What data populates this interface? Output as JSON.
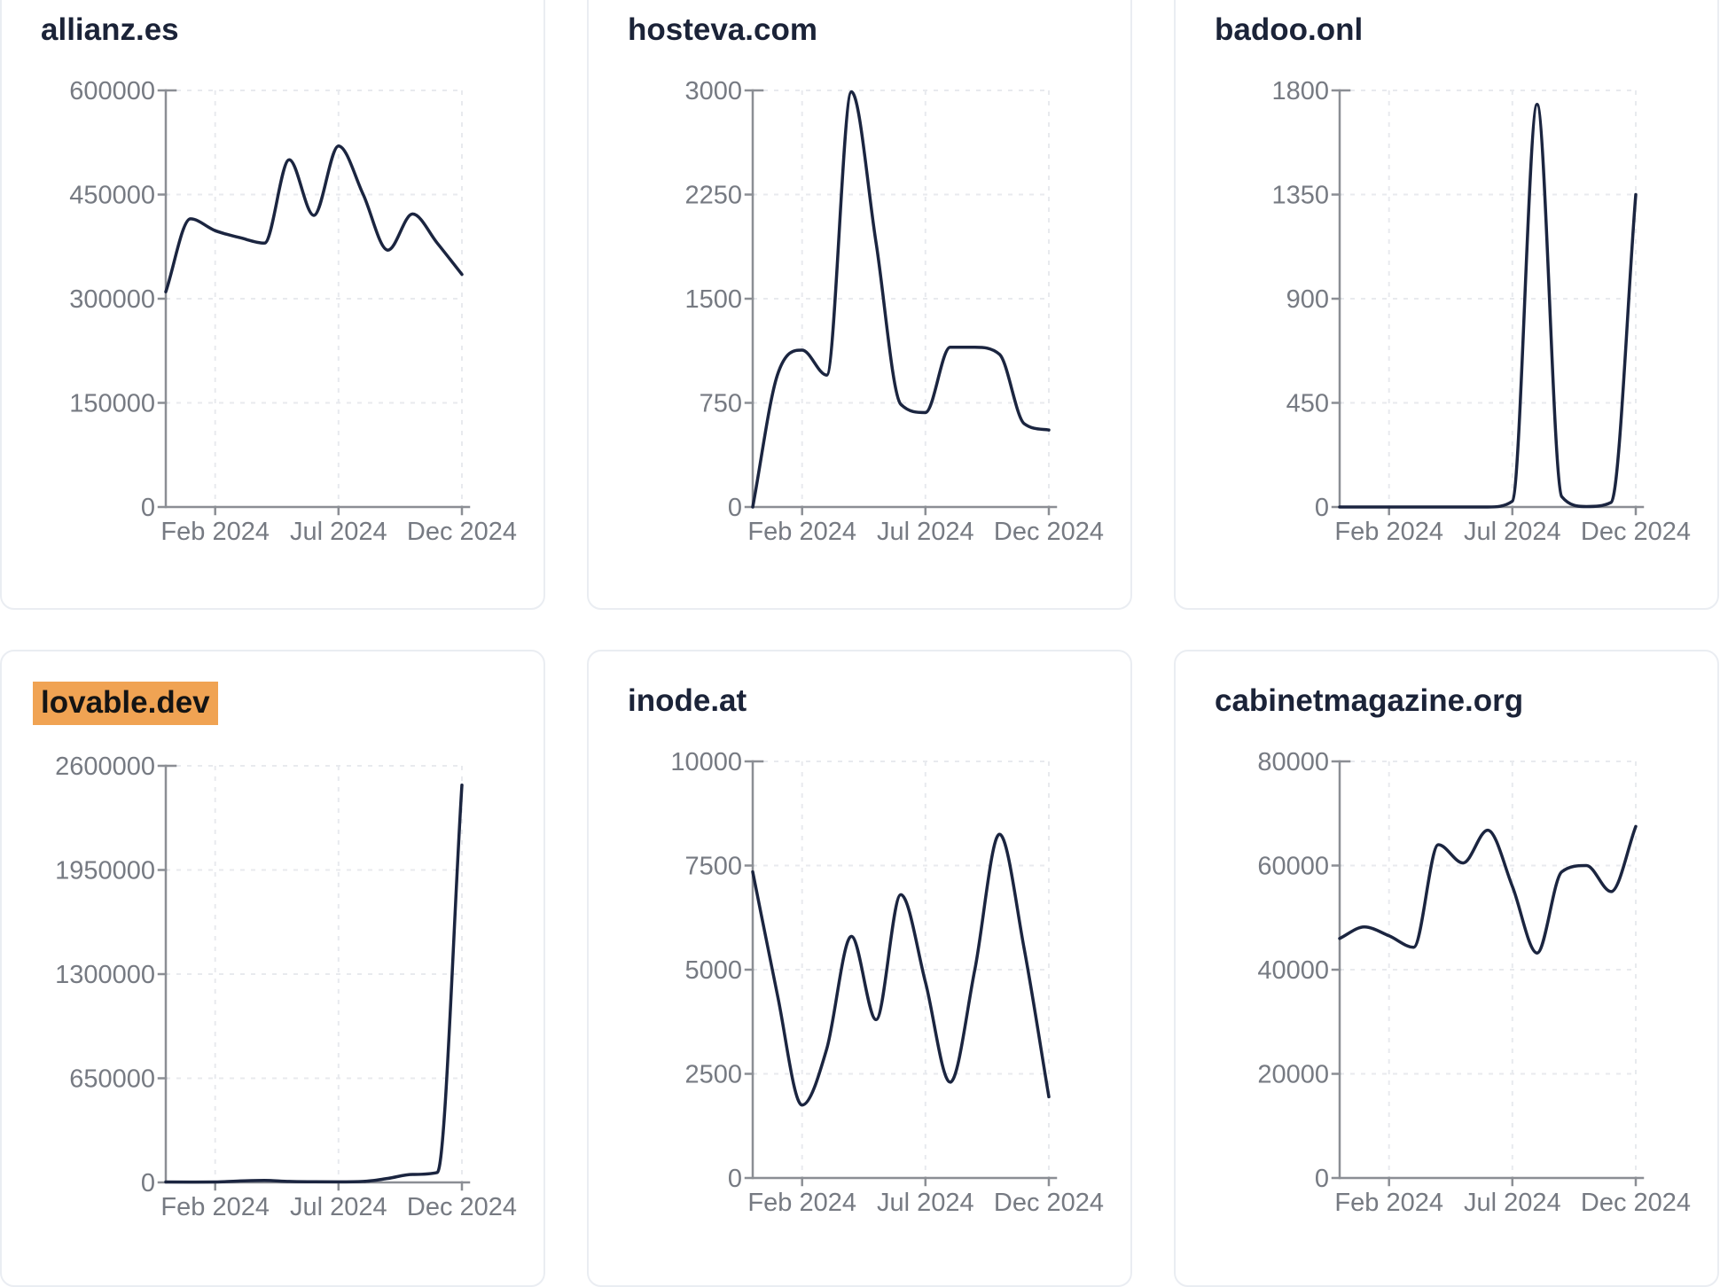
{
  "page": {
    "background": "#ffffff"
  },
  "theme": {
    "card_border": "#eaedf2",
    "title_color": "#1b2338",
    "series_line_color": "#1b2540",
    "axis_color": "#8b8e94",
    "tick_label_color": "#767a82",
    "grid_color": "#e8eaee",
    "highlight_color": "#f0a353",
    "highlight_text_color": "#141414"
  },
  "chart_data": [
    {
      "type": "line",
      "title": "allianz.es",
      "highlighted": false,
      "x": [
        "Dec 2023",
        "Jan 2024",
        "Feb 2024",
        "Mar 2024",
        "Apr 2024",
        "May 2024",
        "Jun 2024",
        "Jul 2024",
        "Aug 2024",
        "Sep 2024",
        "Oct 2024",
        "Nov 2024",
        "Dec 2024"
      ],
      "values": [
        310000,
        415000,
        398000,
        388000,
        380000,
        500000,
        420000,
        520000,
        450000,
        370000,
        422000,
        380000,
        335000
      ],
      "y_ticks": [
        0,
        150000,
        300000,
        450000,
        600000
      ],
      "ylim": [
        0,
        600000
      ],
      "x_tick_labels": [
        "Feb 2024",
        "Jul 2024",
        "Dec 2024"
      ],
      "x_tick_indices": [
        2,
        7,
        12
      ],
      "grid": "dashed",
      "legend": "none"
    },
    {
      "type": "line",
      "title": "hosteva.com",
      "highlighted": false,
      "x": [
        "Dec 2023",
        "Jan 2024",
        "Feb 2024",
        "Mar 2024",
        "Apr 2024",
        "May 2024",
        "Jun 2024",
        "Jul 2024",
        "Aug 2024",
        "Sep 2024",
        "Oct 2024",
        "Nov 2024",
        "Dec 2024"
      ],
      "values": [
        0,
        950,
        1130,
        950,
        2990,
        1900,
        740,
        680,
        1150,
        1150,
        1100,
        600,
        555
      ],
      "y_ticks": [
        0,
        750,
        1500,
        2250,
        3000
      ],
      "ylim": [
        0,
        3000
      ],
      "x_tick_labels": [
        "Feb 2024",
        "Jul 2024",
        "Dec 2024"
      ],
      "x_tick_indices": [
        2,
        7,
        12
      ],
      "grid": "dashed",
      "legend": "none"
    },
    {
      "type": "line",
      "title": "badoo.onl",
      "highlighted": false,
      "x": [
        "Dec 2023",
        "Jan 2024",
        "Feb 2024",
        "Mar 2024",
        "Apr 2024",
        "May 2024",
        "Jun 2024",
        "Jul 2024",
        "Aug 2024",
        "Sep 2024",
        "Oct 2024",
        "Nov 2024",
        "Dec 2024"
      ],
      "values": [
        0,
        0,
        0,
        0,
        0,
        0,
        0,
        25,
        1740,
        45,
        2,
        20,
        1350
      ],
      "y_ticks": [
        0,
        450,
        900,
        1350,
        1800
      ],
      "ylim": [
        0,
        1800
      ],
      "x_tick_labels": [
        "Feb 2024",
        "Jul 2024",
        "Dec 2024"
      ],
      "x_tick_indices": [
        2,
        7,
        12
      ],
      "grid": "dashed",
      "legend": "none"
    },
    {
      "type": "line",
      "title": "lovable.dev",
      "highlighted": true,
      "x": [
        "Dec 2023",
        "Jan 2024",
        "Feb 2024",
        "Mar 2024",
        "Apr 2024",
        "May 2024",
        "Jun 2024",
        "Jul 2024",
        "Aug 2024",
        "Sep 2024",
        "Oct 2024",
        "Nov 2024",
        "Dec 2024"
      ],
      "values": [
        3000,
        2000,
        2500,
        9000,
        12000,
        6000,
        4000,
        3500,
        6000,
        25000,
        50000,
        62000,
        2480000
      ],
      "y_ticks": [
        0,
        650000,
        1300000,
        1950000,
        2600000
      ],
      "ylim": [
        0,
        2600000
      ],
      "x_tick_labels": [
        "Feb 2024",
        "Jul 2024",
        "Dec 2024"
      ],
      "x_tick_indices": [
        2,
        7,
        12
      ],
      "grid": "dashed",
      "legend": "none"
    },
    {
      "type": "line",
      "title": "inode.at",
      "highlighted": false,
      "x": [
        "Dec 2023",
        "Jan 2024",
        "Feb 2024",
        "Mar 2024",
        "Apr 2024",
        "May 2024",
        "Jun 2024",
        "Jul 2024",
        "Aug 2024",
        "Sep 2024",
        "Oct 2024",
        "Nov 2024",
        "Dec 2024"
      ],
      "values": [
        7350,
        4400,
        1750,
        3100,
        5800,
        3800,
        6800,
        4700,
        2300,
        5000,
        8250,
        5500,
        1950
      ],
      "y_ticks": [
        0,
        2500,
        5000,
        7500,
        10000
      ],
      "ylim": [
        0,
        10000
      ],
      "x_tick_labels": [
        "Feb 2024",
        "Jul 2024",
        "Dec 2024"
      ],
      "x_tick_indices": [
        2,
        7,
        12
      ],
      "grid": "dashed",
      "legend": "none"
    },
    {
      "type": "line",
      "title": "cabinetmagazine.org",
      "highlighted": false,
      "x": [
        "Dec 2023",
        "Jan 2024",
        "Feb 2024",
        "Mar 2024",
        "Apr 2024",
        "May 2024",
        "Jun 2024",
        "Jul 2024",
        "Aug 2024",
        "Sep 2024",
        "Oct 2024",
        "Nov 2024",
        "Dec 2024"
      ],
      "values": [
        46000,
        48200,
        46500,
        44300,
        64000,
        60500,
        66800,
        56000,
        43200,
        58800,
        60000,
        55000,
        67500
      ],
      "y_ticks": [
        0,
        20000,
        40000,
        60000,
        80000
      ],
      "ylim": [
        0,
        80000
      ],
      "x_tick_labels": [
        "Feb 2024",
        "Jul 2024",
        "Dec 2024"
      ],
      "x_tick_indices": [
        2,
        7,
        12
      ],
      "grid": "dashed",
      "legend": "none"
    }
  ]
}
